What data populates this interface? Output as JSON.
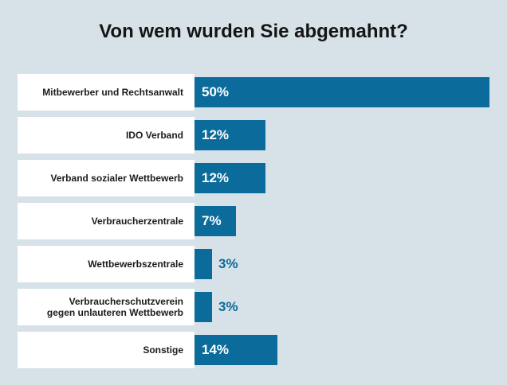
{
  "chart_data": {
    "type": "bar",
    "orientation": "horizontal",
    "title": "Von wem wurden Sie abgemahnt?",
    "categories": [
      "Mitbewerber und Rechtsanwalt",
      "IDO Verband",
      "Verband sozialer Wettbewerb",
      "Verbraucherzentrale",
      "Wettbewerbszentrale",
      "Verbraucherschutzverein gegen unlauteren Wettbewerb",
      "Sonstige"
    ],
    "values": [
      50,
      12,
      12,
      7,
      3,
      3,
      14
    ],
    "value_labels": [
      "50%",
      "12%",
      "12%",
      "7%",
      "3%",
      "3%",
      "14%"
    ],
    "xlim": [
      0,
      50
    ],
    "grid": false,
    "legend": "none",
    "colors": {
      "bar": "#0b6b9a",
      "background": "#d6e1e8",
      "label_box": "#ffffff",
      "label_text_inside": "#ffffff",
      "label_text_outside": "#0b6b9a"
    }
  }
}
